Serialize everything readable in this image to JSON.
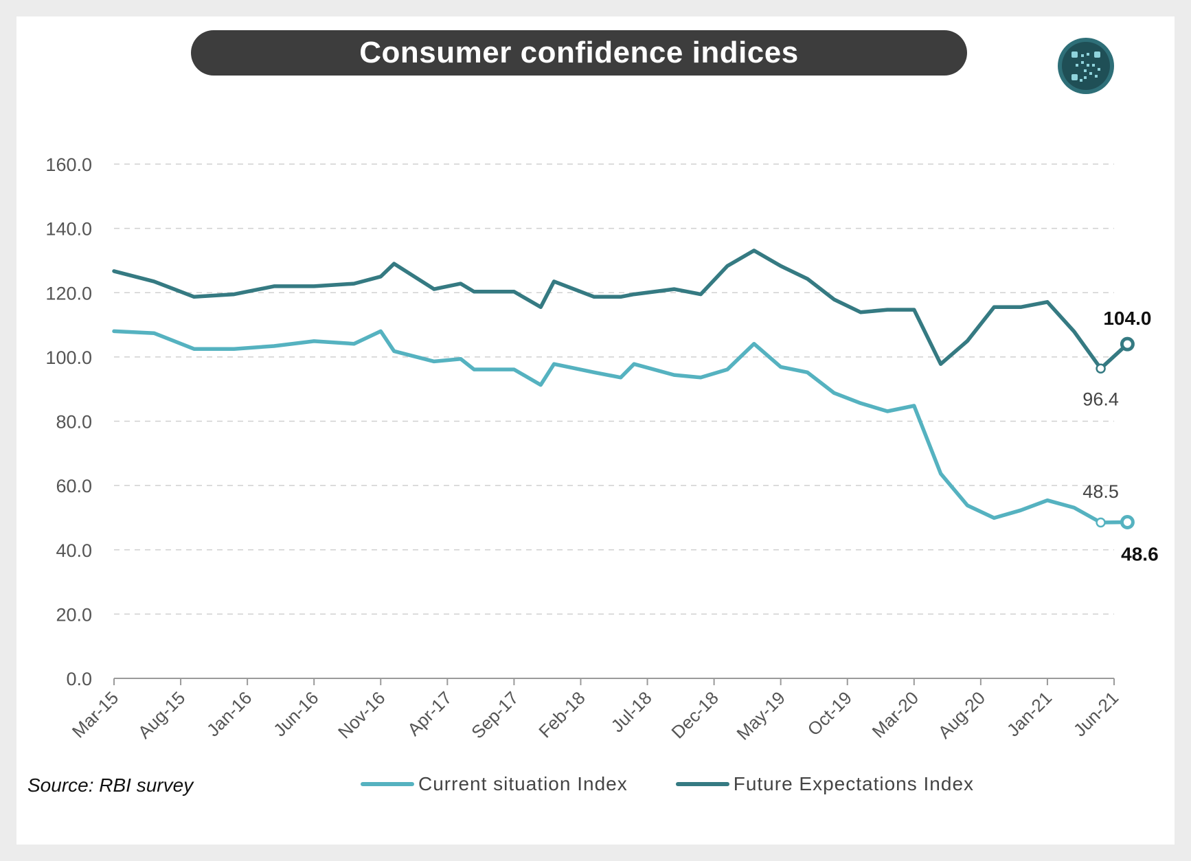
{
  "title": "Consumer confidence indices",
  "source": "Source: RBI survey",
  "colors": {
    "current": "#55b2c0",
    "future": "#357a82",
    "title_bg": "#3d3d3d",
    "grid": "#d0d0d0"
  },
  "logo": {
    "icon": "circular-logo-icon"
  },
  "chart_data": {
    "type": "line",
    "xlabel": "",
    "ylabel": "",
    "ylim": [
      0,
      160
    ],
    "yticks": [
      0,
      20,
      40,
      60,
      80,
      100,
      120,
      140,
      160
    ],
    "ytick_labels": [
      "0.0",
      "20.0",
      "40.0",
      "60.0",
      "80.0",
      "100.0",
      "120.0",
      "140.0",
      "160.0"
    ],
    "xtick_labels": [
      "Mar-15",
      "Aug-15",
      "Jan-16",
      "Jun-16",
      "Nov-16",
      "Apr-17",
      "Sep-17",
      "Feb-18",
      "Jul-18",
      "Dec-18",
      "May-19",
      "Oct-19",
      "Mar-20",
      "Aug-20",
      "Jan-21",
      "Jun-21"
    ],
    "grid": true,
    "legend_position": "bottom",
    "series": [
      {
        "name": "Current situation Index",
        "points": [
          [
            "2015-03",
            108.0
          ],
          [
            "2015-06",
            107.4
          ],
          [
            "2015-09",
            102.5
          ],
          [
            "2015-12",
            102.5
          ],
          [
            "2016-03",
            103.4
          ],
          [
            "2016-06",
            104.9
          ],
          [
            "2016-09",
            104.1
          ],
          [
            "2016-11",
            108.0
          ],
          [
            "2016-12",
            101.8
          ],
          [
            "2017-03",
            98.6
          ],
          [
            "2017-05",
            99.4
          ],
          [
            "2017-06",
            96.1
          ],
          [
            "2017-08",
            96.1
          ],
          [
            "2017-09",
            96.1
          ],
          [
            "2017-11",
            91.3
          ],
          [
            "2017-12",
            97.8
          ],
          [
            "2018-03",
            95.2
          ],
          [
            "2018-05",
            93.6
          ],
          [
            "2018-06",
            97.8
          ],
          [
            "2018-09",
            94.4
          ],
          [
            "2018-11",
            93.6
          ],
          [
            "2019-01",
            96.1
          ],
          [
            "2019-03",
            104.1
          ],
          [
            "2019-05",
            96.9
          ],
          [
            "2019-07",
            95.2
          ],
          [
            "2019-09",
            88.8
          ],
          [
            "2019-11",
            85.6
          ],
          [
            "2020-01",
            83.1
          ],
          [
            "2020-03",
            84.8
          ],
          [
            "2020-05",
            63.7
          ],
          [
            "2020-07",
            53.8
          ],
          [
            "2020-09",
            49.9
          ],
          [
            "2020-11",
            52.3
          ],
          [
            "2021-01",
            55.4
          ],
          [
            "2021-03",
            53.1
          ],
          [
            "2021-05",
            48.5
          ],
          [
            "2021-07",
            48.6
          ]
        ],
        "annotations": [
          {
            "label": "48.5",
            "at": "2021-05",
            "bold": false
          },
          {
            "label": "48.6",
            "at": "2021-07",
            "bold": true
          }
        ]
      },
      {
        "name": "Future Expectations Index",
        "points": [
          [
            "2015-03",
            126.7
          ],
          [
            "2015-06",
            123.5
          ],
          [
            "2015-09",
            118.7
          ],
          [
            "2015-12",
            119.5
          ],
          [
            "2016-03",
            122.0
          ],
          [
            "2016-06",
            122.0
          ],
          [
            "2016-09",
            122.8
          ],
          [
            "2016-11",
            125.0
          ],
          [
            "2016-12",
            129.0
          ],
          [
            "2017-03",
            121.1
          ],
          [
            "2017-05",
            122.8
          ],
          [
            "2017-06",
            120.3
          ],
          [
            "2017-08",
            120.3
          ],
          [
            "2017-09",
            120.3
          ],
          [
            "2017-11",
            115.5
          ],
          [
            "2017-12",
            123.5
          ],
          [
            "2018-03",
            118.7
          ],
          [
            "2018-05",
            118.7
          ],
          [
            "2018-06",
            119.5
          ],
          [
            "2018-09",
            121.1
          ],
          [
            "2018-11",
            119.5
          ],
          [
            "2019-01",
            128.3
          ],
          [
            "2019-03",
            133.1
          ],
          [
            "2019-05",
            128.3
          ],
          [
            "2019-07",
            124.3
          ],
          [
            "2019-09",
            117.9
          ],
          [
            "2019-11",
            113.9
          ],
          [
            "2020-01",
            114.7
          ],
          [
            "2020-03",
            114.7
          ],
          [
            "2020-05",
            97.8
          ],
          [
            "2020-07",
            105.0
          ],
          [
            "2020-09",
            115.5
          ],
          [
            "2020-11",
            115.5
          ],
          [
            "2021-01",
            117.1
          ],
          [
            "2021-03",
            107.9
          ],
          [
            "2021-05",
            96.4
          ],
          [
            "2021-07",
            104.0
          ]
        ],
        "annotations": [
          {
            "label": "96.4",
            "at": "2021-05",
            "bold": false
          },
          {
            "label": "104.0",
            "at": "2021-07",
            "bold": true
          }
        ]
      }
    ]
  }
}
